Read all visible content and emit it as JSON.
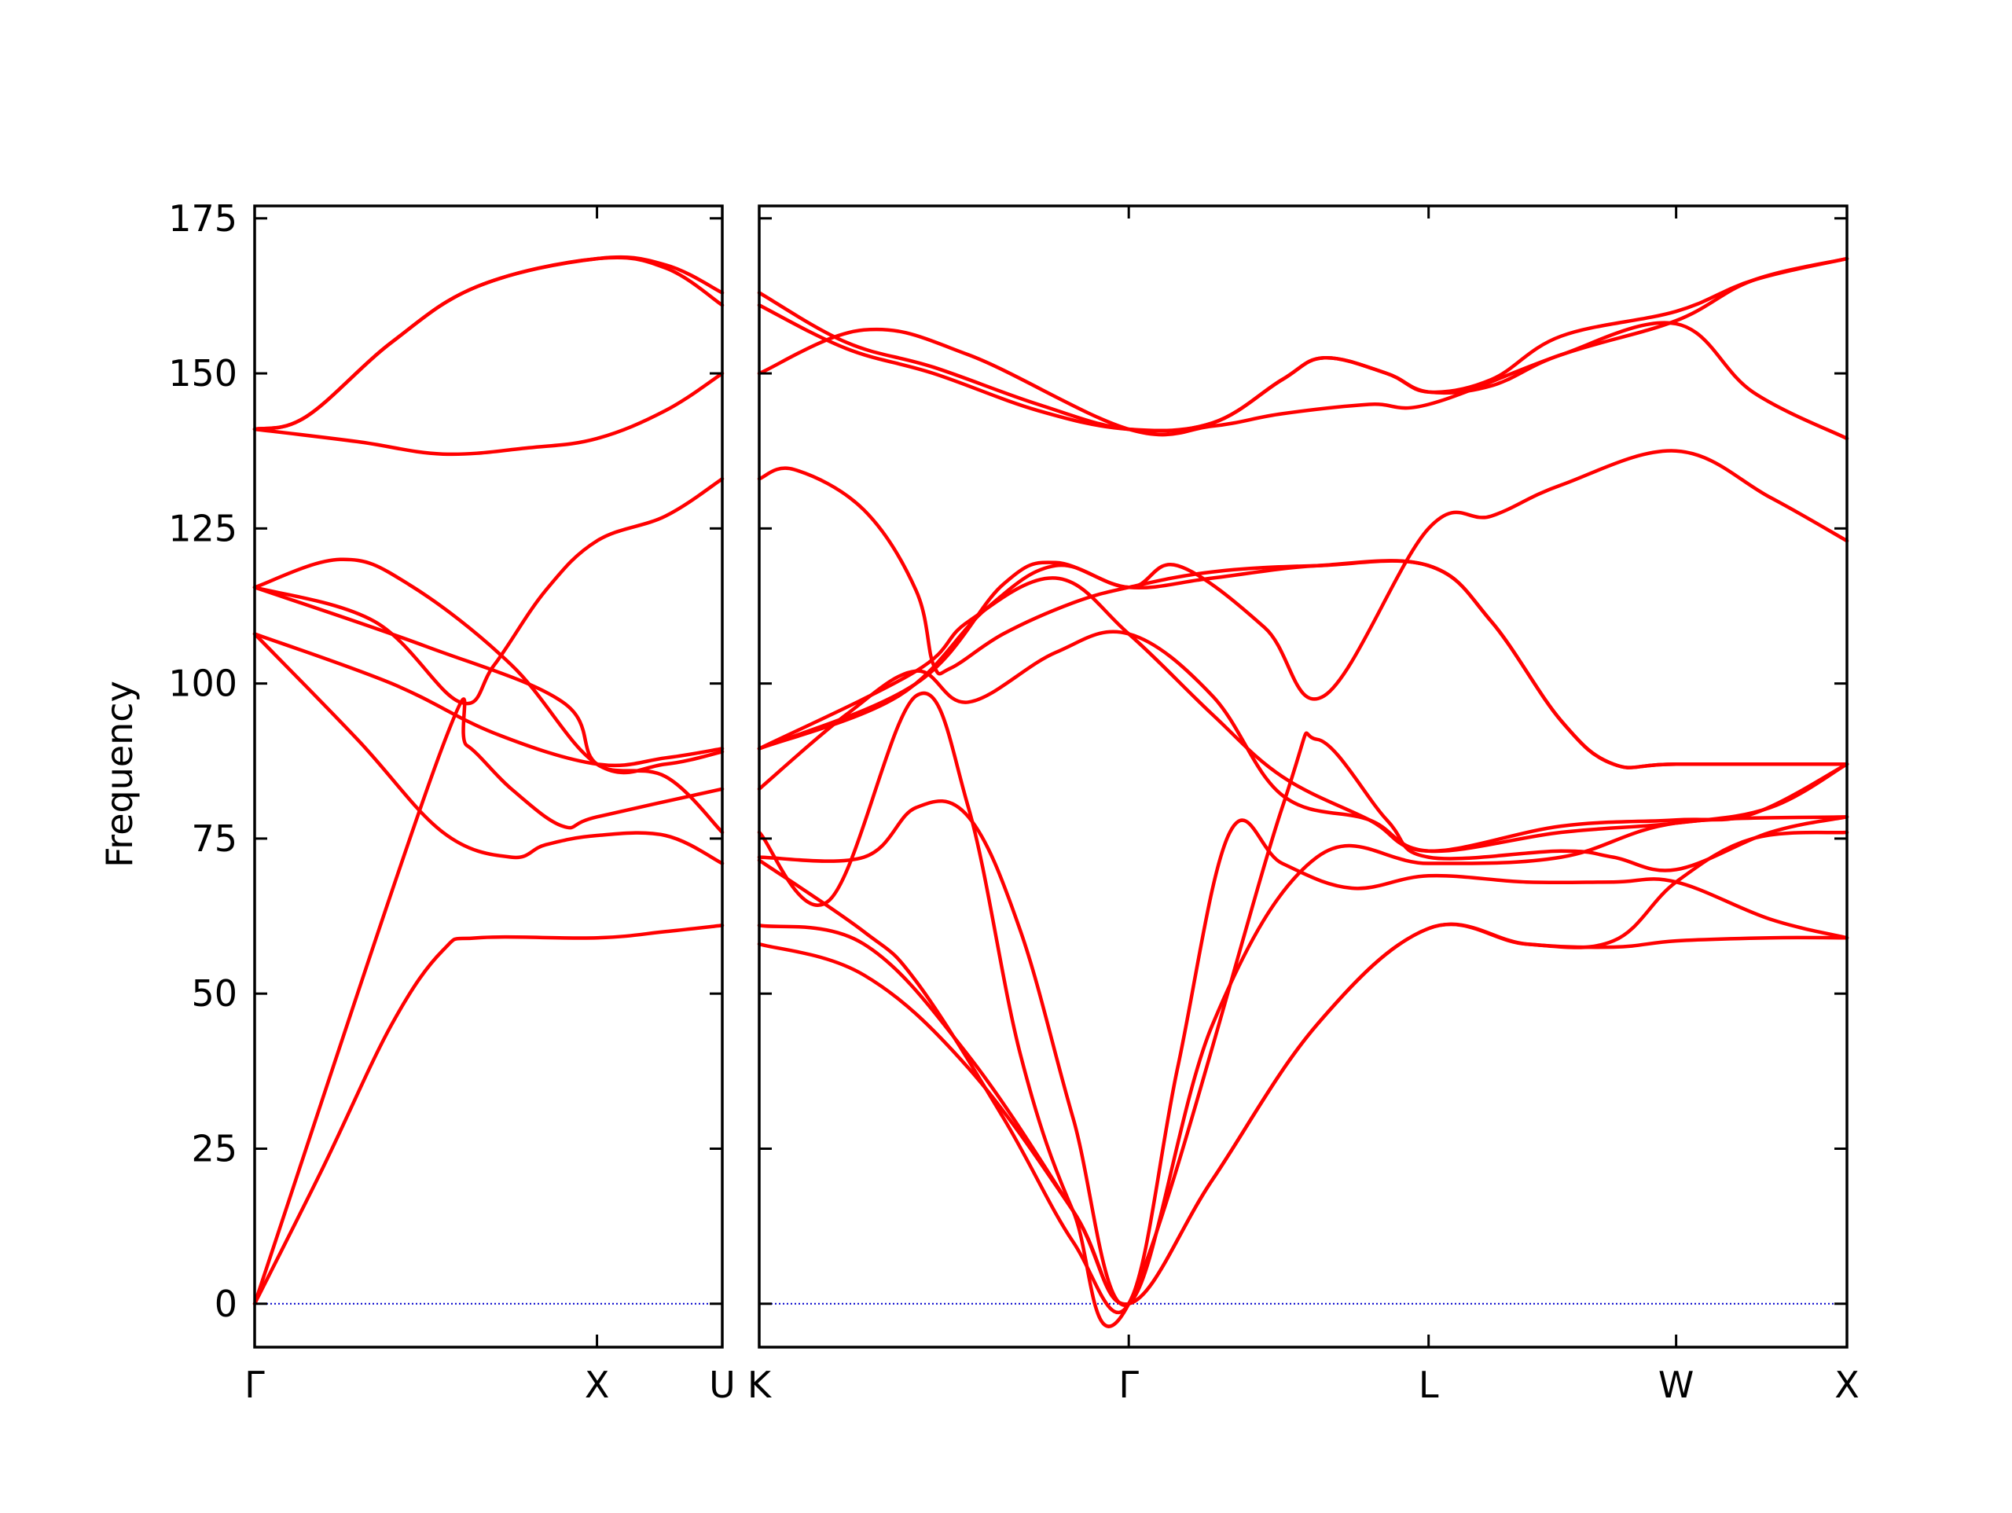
{
  "chart_data": {
    "type": "line",
    "title": "",
    "ylabel": "Frequency",
    "ylim": [
      -7,
      177
    ],
    "yticks": [
      0,
      25,
      50,
      75,
      100,
      125,
      150,
      175
    ],
    "ytick_labels": [
      "0",
      "25",
      "50",
      "75",
      "100",
      "125",
      "150",
      "175"
    ],
    "grid": false,
    "legend": "none",
    "colors": {
      "bands": "#ff0000",
      "zero_line": "#0000cc",
      "axes": "#000000"
    },
    "panels": [
      {
        "id": "left",
        "xlim": [
          0,
          1.366
        ],
        "xticks": [
          0,
          1.0,
          1.366
        ],
        "xtick_labels": [
          "Γ",
          "X",
          "U"
        ],
        "bands": [
          [
            [
              0,
              0
            ],
            [
              0.2,
              22
            ],
            [
              0.4,
              45
            ],
            [
              0.55,
              57
            ],
            [
              0.65,
              59
            ],
            [
              1.0,
              59
            ],
            [
              1.2,
              60
            ],
            [
              1.366,
              61
            ]
          ],
          [
            [
              0,
              0
            ],
            [
              0.55,
              90
            ],
            [
              0.62,
              90
            ],
            [
              0.75,
              83
            ],
            [
              0.9,
              77
            ],
            [
              1.0,
              78.5
            ],
            [
              1.366,
              83
            ]
          ],
          [
            [
              0,
              108
            ],
            [
              0.3,
              91
            ],
            [
              0.55,
              76
            ],
            [
              0.75,
              72
            ],
            [
              0.85,
              74
            ],
            [
              1.0,
              75.5
            ],
            [
              1.2,
              75.5
            ],
            [
              1.366,
              71
            ]
          ],
          [
            [
              0,
              108
            ],
            [
              0.4,
              100
            ],
            [
              0.7,
              92
            ],
            [
              1.0,
              87
            ],
            [
              1.2,
              88
            ],
            [
              1.366,
              89.5
            ]
          ],
          [
            [
              0,
              115.5
            ],
            [
              0.5,
              106
            ],
            [
              0.9,
              97
            ],
            [
              1.0,
              87
            ],
            [
              1.2,
              85
            ],
            [
              1.366,
              76
            ]
          ],
          [
            [
              0,
              115.5
            ],
            [
              0.25,
              120
            ],
            [
              0.45,
              116
            ],
            [
              0.75,
              103
            ],
            [
              1.0,
              87
            ],
            [
              1.2,
              87
            ],
            [
              1.366,
              89
            ]
          ],
          [
            [
              0,
              115.5
            ],
            [
              0.35,
              110
            ],
            [
              0.6,
              97
            ],
            [
              0.7,
              103
            ],
            [
              0.85,
              115
            ],
            [
              1.0,
              123
            ],
            [
              1.2,
              127
            ],
            [
              1.366,
              133
            ]
          ],
          [
            [
              0,
              141
            ],
            [
              0.3,
              139
            ],
            [
              0.55,
              137
            ],
            [
              0.8,
              138
            ],
            [
              1.0,
              139.5
            ],
            [
              1.2,
              144
            ],
            [
              1.366,
              150
            ]
          ],
          [
            [
              0,
              141
            ],
            [
              0.15,
              143
            ],
            [
              0.4,
              155
            ],
            [
              0.65,
              164
            ],
            [
              1.0,
              168.5
            ],
            [
              1.2,
              167
            ],
            [
              1.366,
              161
            ]
          ],
          [
            [
              0,
              141
            ],
            [
              0.15,
              143
            ],
            [
              0.4,
              155
            ],
            [
              0.65,
              164
            ],
            [
              1.0,
              168.5
            ],
            [
              1.2,
              167.5
            ],
            [
              1.366,
              163
            ]
          ]
        ]
      },
      {
        "id": "right",
        "xlim": [
          0,
          3.12
        ],
        "xticks": [
          0,
          1.06,
          1.92,
          2.63,
          3.12
        ],
        "xtick_labels": [
          "K",
          "Γ",
          "L",
          "W",
          "X"
        ],
        "bands": [
          [
            [
              0,
              58
            ],
            [
              0.3,
              53
            ],
            [
              0.6,
              38
            ],
            [
              0.9,
              15
            ],
            [
              1.06,
              0
            ],
            [
              1.3,
              20
            ],
            [
              1.6,
              45
            ],
            [
              1.92,
              60.5
            ],
            [
              2.2,
              58
            ],
            [
              2.45,
              57.5
            ],
            [
              2.63,
              58.5
            ],
            [
              2.9,
              59
            ],
            [
              3.12,
              59
            ]
          ],
          [
            [
              0,
              61
            ],
            [
              0.3,
              58
            ],
            [
              0.6,
              40
            ],
            [
              0.9,
              15
            ],
            [
              1.06,
              0
            ],
            [
              1.3,
              20
            ],
            [
              1.6,
              45
            ],
            [
              1.92,
              60.5
            ],
            [
              2.2,
              58
            ],
            [
              2.45,
              58.5
            ],
            [
              2.63,
              68
            ],
            [
              2.85,
              75
            ],
            [
              3.12,
              76
            ]
          ],
          [
            [
              0,
              71.5
            ],
            [
              0.3,
              60
            ],
            [
              0.45,
              52
            ],
            [
              0.7,
              30
            ],
            [
              0.9,
              10
            ],
            [
              1.06,
              0
            ],
            [
              1.2,
              38
            ],
            [
              1.35,
              76
            ],
            [
              1.5,
              71
            ],
            [
              1.7,
              67
            ],
            [
              1.92,
              69
            ],
            [
              2.2,
              68
            ],
            [
              2.45,
              68
            ],
            [
              2.63,
              68
            ],
            [
              2.9,
              62
            ],
            [
              3.12,
              59
            ]
          ],
          [
            [
              0,
              76
            ],
            [
              0.2,
              65
            ],
            [
              0.45,
              98
            ],
            [
              0.6,
              80
            ],
            [
              0.75,
              40
            ],
            [
              0.9,
              15
            ],
            [
              1.06,
              0
            ],
            [
              1.5,
              80
            ],
            [
              1.6,
              91
            ],
            [
              1.8,
              78
            ],
            [
              1.92,
              72
            ],
            [
              2.3,
              73
            ],
            [
              2.45,
              72
            ],
            [
              2.63,
              70
            ],
            [
              2.9,
              76
            ],
            [
              3.12,
              78.5
            ]
          ],
          [
            [
              0,
              72
            ],
            [
              0.3,
              72
            ],
            [
              0.45,
              80
            ],
            [
              0.6,
              78.5
            ],
            [
              0.75,
              60
            ],
            [
              0.9,
              30
            ],
            [
              1.06,
              0
            ],
            [
              1.3,
              45
            ],
            [
              1.6,
              72
            ],
            [
              1.92,
              71
            ],
            [
              2.3,
              72
            ],
            [
              2.63,
              77.5
            ],
            [
              3.12,
              78.5
            ]
          ],
          [
            [
              0,
              83
            ],
            [
              0.25,
              95
            ],
            [
              0.45,
              102
            ],
            [
              0.6,
              97
            ],
            [
              0.85,
              105
            ],
            [
              1.06,
              108
            ],
            [
              1.3,
              98
            ],
            [
              1.5,
              82
            ],
            [
              1.75,
              78
            ],
            [
              1.92,
              73
            ],
            [
              2.3,
              76
            ],
            [
              2.63,
              77.5
            ],
            [
              2.9,
              80
            ],
            [
              3.12,
              87
            ]
          ],
          [
            [
              0,
              89.5
            ],
            [
              0.45,
              102
            ],
            [
              0.6,
              110
            ],
            [
              0.85,
              117
            ],
            [
              1.06,
              108
            ],
            [
              1.3,
              95
            ],
            [
              1.5,
              85
            ],
            [
              1.75,
              78
            ],
            [
              1.92,
              73
            ],
            [
              2.3,
              77
            ],
            [
              2.63,
              78
            ],
            [
              2.85,
              79
            ],
            [
              3.12,
              87
            ]
          ],
          [
            [
              0,
              89.5
            ],
            [
              0.4,
              98
            ],
            [
              0.65,
              112
            ],
            [
              0.85,
              119
            ],
            [
              1.06,
              115.5
            ],
            [
              1.3,
              117
            ],
            [
              1.6,
              119
            ],
            [
              1.92,
              119
            ],
            [
              2.1,
              110
            ],
            [
              2.3,
              94
            ],
            [
              2.45,
              87
            ],
            [
              2.63,
              87
            ],
            [
              3.12,
              87
            ]
          ],
          [
            [
              0,
              89.5
            ],
            [
              0.45,
              100
            ],
            [
              0.7,
              116
            ],
            [
              0.85,
              119.5
            ],
            [
              1.06,
              115.5
            ],
            [
              1.2,
              119
            ],
            [
              1.45,
              109
            ],
            [
              1.62,
              98
            ],
            [
              1.92,
              125
            ],
            [
              2.1,
              127
            ],
            [
              2.3,
              132
            ],
            [
              2.63,
              137.5
            ],
            [
              2.9,
              130
            ],
            [
              3.12,
              123
            ]
          ],
          [
            [
              0,
              133
            ],
            [
              0.1,
              134.5
            ],
            [
              0.3,
              128
            ],
            [
              0.45,
              115
            ],
            [
              0.5,
              103
            ],
            [
              0.55,
              102.5
            ],
            [
              0.7,
              108
            ],
            [
              0.9,
              113
            ],
            [
              1.06,
              115.5
            ],
            [
              1.3,
              118
            ],
            [
              1.6,
              119
            ],
            [
              1.92,
              119
            ],
            [
              2.1,
              110
            ],
            [
              2.3,
              94
            ],
            [
              2.45,
              87
            ],
            [
              2.63,
              87
            ],
            [
              3.12,
              87
            ]
          ],
          [
            [
              0,
              150
            ],
            [
              0.3,
              157
            ],
            [
              0.6,
              153
            ],
            [
              1.06,
              141
            ],
            [
              1.3,
              141.5
            ],
            [
              1.5,
              143.5
            ],
            [
              1.75,
              145
            ],
            [
              1.92,
              145
            ],
            [
              2.3,
              153
            ],
            [
              2.63,
              158.5
            ],
            [
              2.85,
              165
            ],
            [
              3.12,
              168.5
            ]
          ],
          [
            [
              0,
              161
            ],
            [
              0.25,
              154
            ],
            [
              0.5,
              150
            ],
            [
              0.8,
              144
            ],
            [
              1.06,
              141
            ],
            [
              1.3,
              142
            ],
            [
              1.5,
              149
            ],
            [
              1.62,
              152.5
            ],
            [
              1.8,
              150
            ],
            [
              1.92,
              147
            ],
            [
              2.1,
              148
            ],
            [
              2.3,
              153
            ],
            [
              2.63,
              158
            ],
            [
              2.85,
              147
            ],
            [
              3.12,
              139.5
            ]
          ],
          [
            [
              0,
              163
            ],
            [
              0.25,
              155
            ],
            [
              0.5,
              151
            ],
            [
              0.8,
              145
            ],
            [
              1.06,
              141
            ],
            [
              1.3,
              142
            ],
            [
              1.5,
              149
            ],
            [
              1.62,
              152.5
            ],
            [
              1.8,
              150
            ],
            [
              1.92,
              147
            ],
            [
              2.1,
              149
            ],
            [
              2.3,
              156
            ],
            [
              2.63,
              160
            ],
            [
              2.85,
              165
            ],
            [
              3.12,
              168.5
            ]
          ]
        ]
      }
    ]
  }
}
